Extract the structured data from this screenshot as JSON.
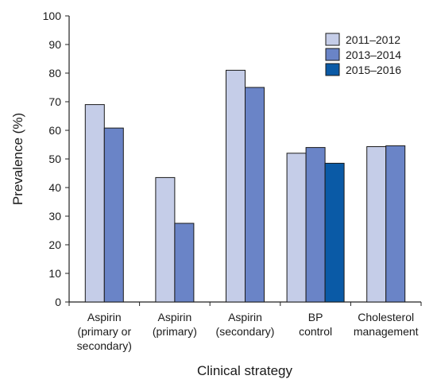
{
  "chart_data": {
    "type": "bar",
    "title": "",
    "xlabel": "Clinical strategy",
    "ylabel": "Prevalence (%)",
    "ylim": [
      0,
      100
    ],
    "yticks": [
      0,
      10,
      20,
      30,
      40,
      50,
      60,
      70,
      80,
      90,
      100
    ],
    "grid": false,
    "legend_position": "top-right",
    "categories": [
      [
        "Aspirin",
        "(primary or",
        "secondary)"
      ],
      [
        "Aspirin",
        "(primary)"
      ],
      [
        "Aspirin",
        "(secondary)"
      ],
      [
        "BP",
        "control"
      ],
      [
        "Cholesterol",
        "management"
      ]
    ],
    "series": [
      {
        "name": "2011–2012",
        "color": "#c5cde8",
        "values": [
          69,
          43.5,
          81,
          52,
          54.3
        ]
      },
      {
        "name": "2013–2014",
        "color": "#6a84c7",
        "values": [
          60.8,
          27.5,
          75,
          54,
          54.6
        ]
      },
      {
        "name": "2015–2016",
        "color": "#0a5aa6",
        "values": [
          null,
          null,
          null,
          48.5,
          null
        ]
      }
    ]
  }
}
